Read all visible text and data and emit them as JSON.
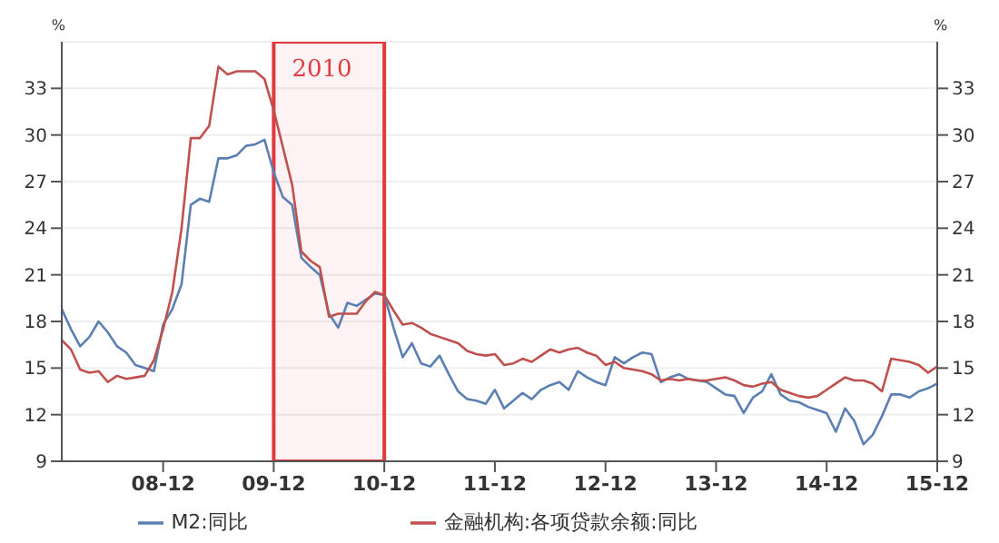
{
  "chart_data": {
    "type": "line",
    "ylabel": "%",
    "y2label": "%",
    "x": [
      "2008-01",
      "2008-02",
      "2008-03",
      "2008-04",
      "2008-05",
      "2008-06",
      "2008-07",
      "2008-08",
      "2008-09",
      "2008-10",
      "2008-11",
      "2008-12",
      "2009-01",
      "2009-02",
      "2009-03",
      "2009-04",
      "2009-05",
      "2009-06",
      "2009-07",
      "2009-08",
      "2009-09",
      "2009-10",
      "2009-11",
      "2009-12",
      "2010-01",
      "2010-02",
      "2010-03",
      "2010-04",
      "2010-05",
      "2010-06",
      "2010-07",
      "2010-08",
      "2010-09",
      "2010-10",
      "2010-11",
      "2010-12",
      "2011-01",
      "2011-02",
      "2011-03",
      "2011-04",
      "2011-05",
      "2011-06",
      "2011-07",
      "2011-08",
      "2011-09",
      "2011-10",
      "2011-11",
      "2011-12",
      "2012-01",
      "2012-02",
      "2012-03",
      "2012-04",
      "2012-05",
      "2012-06",
      "2012-07",
      "2012-08",
      "2012-09",
      "2012-10",
      "2012-11",
      "2012-12",
      "2013-01",
      "2013-02",
      "2013-03",
      "2013-04",
      "2013-05",
      "2013-06",
      "2013-07",
      "2013-08",
      "2013-09",
      "2013-10",
      "2013-11",
      "2013-12",
      "2014-01",
      "2014-02",
      "2014-03",
      "2014-04",
      "2014-05",
      "2014-06",
      "2014-07",
      "2014-08",
      "2014-09",
      "2014-10",
      "2014-11",
      "2014-12",
      "2015-01",
      "2015-02",
      "2015-03",
      "2015-04",
      "2015-05",
      "2015-06",
      "2015-07",
      "2015-08",
      "2015-09",
      "2015-10",
      "2015-11",
      "2015-12"
    ],
    "series": [
      {
        "name": "M2:同比",
        "color": "#5b7fb3",
        "values": [
          18.8,
          17.5,
          16.4,
          17.0,
          18.0,
          17.3,
          16.4,
          16.0,
          15.2,
          15.0,
          14.8,
          17.8,
          18.8,
          20.4,
          25.5,
          25.9,
          25.7,
          28.5,
          28.5,
          28.7,
          29.3,
          29.4,
          29.7,
          27.6,
          26.0,
          25.5,
          22.1,
          21.5,
          21.0,
          18.5,
          17.6,
          19.2,
          19.0,
          19.4,
          19.8,
          19.7,
          17.6,
          15.7,
          16.6,
          15.3,
          15.1,
          15.8,
          14.6,
          13.5,
          13.0,
          12.9,
          12.7,
          13.6,
          12.4,
          12.9,
          13.4,
          13.0,
          13.6,
          13.9,
          14.1,
          13.6,
          14.8,
          14.4,
          14.1,
          13.9,
          15.7,
          15.3,
          15.7,
          16.0,
          15.9,
          14.1,
          14.4,
          14.6,
          14.3,
          14.2,
          14.1,
          13.7,
          13.3,
          13.2,
          12.1,
          13.1,
          13.5,
          14.6,
          13.3,
          12.9,
          12.8,
          12.5,
          12.3,
          12.1,
          10.9,
          12.4,
          11.6,
          10.1,
          10.7,
          11.9,
          13.3,
          13.3,
          13.1,
          13.5,
          13.7,
          14.0
        ]
      },
      {
        "name": "金融机构:各项贷款余额:同比",
        "color": "#c0504d",
        "values": [
          16.8,
          16.2,
          14.9,
          14.7,
          14.8,
          14.1,
          14.5,
          14.3,
          14.4,
          14.5,
          15.5,
          17.5,
          19.9,
          24.0,
          29.8,
          29.8,
          30.6,
          34.4,
          33.9,
          34.1,
          34.1,
          34.1,
          33.6,
          31.6,
          29.2,
          26.8,
          22.5,
          21.9,
          21.5,
          18.3,
          18.5,
          18.5,
          18.5,
          19.3,
          19.9,
          19.7,
          18.7,
          17.8,
          17.9,
          17.6,
          17.2,
          17.0,
          16.8,
          16.6,
          16.1,
          15.9,
          15.8,
          15.9,
          15.2,
          15.3,
          15.6,
          15.4,
          15.8,
          16.2,
          16.0,
          16.2,
          16.3,
          16.0,
          15.8,
          15.2,
          15.4,
          15.0,
          14.9,
          14.8,
          14.6,
          14.2,
          14.3,
          14.2,
          14.3,
          14.2,
          14.2,
          14.3,
          14.4,
          14.2,
          13.9,
          13.8,
          14.0,
          14.1,
          13.6,
          13.4,
          13.2,
          13.1,
          13.2,
          13.6,
          14.0,
          14.4,
          14.2,
          14.2,
          14.0,
          13.5,
          15.6,
          15.5,
          15.4,
          15.2,
          14.7,
          15.1
        ]
      }
    ],
    "xlim": [
      "2008-01",
      "2015-12"
    ],
    "xticks": [
      {
        "value": "2008-12",
        "label": "08-12"
      },
      {
        "value": "2009-12",
        "label": "09-12"
      },
      {
        "value": "2010-12",
        "label": "10-12"
      },
      {
        "value": "2011-12",
        "label": "11-12"
      },
      {
        "value": "2012-12",
        "label": "12-12"
      },
      {
        "value": "2013-12",
        "label": "13-12"
      },
      {
        "value": "2014-12",
        "label": "14-12"
      },
      {
        "value": "2015-12",
        "label": "15-12"
      }
    ],
    "ylim": [
      9,
      36
    ],
    "yticks": [
      9,
      12,
      15,
      18,
      21,
      24,
      27,
      30,
      33
    ],
    "y2lim": [
      9,
      36
    ],
    "y2ticks": [
      9,
      12,
      15,
      18,
      21,
      24,
      27,
      30,
      33
    ],
    "bands": [
      {
        "axis": "x",
        "from": "2009-12",
        "to": "2010-12",
        "label": "2010",
        "color": "#e03a3e"
      }
    ],
    "grid": "y",
    "legend": "bottom",
    "marker": "none",
    "line_style": "solid"
  }
}
